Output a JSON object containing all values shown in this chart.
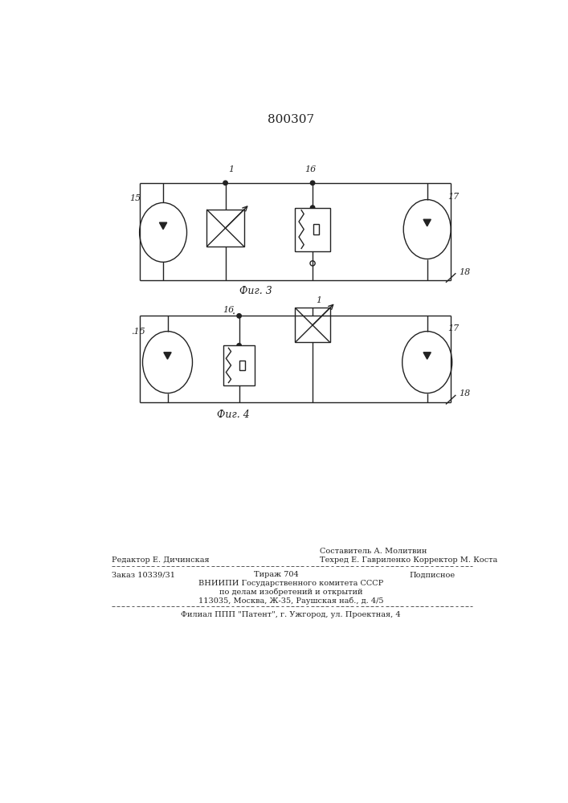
{
  "title": "800307",
  "fig_width": 7.07,
  "fig_height": 10.0,
  "bg_color": "#ffffff",
  "line_color": "#222222",
  "fig3_label": "Фиг. 3",
  "fig4_label": "Фиг. 4",
  "footer": {
    "sestavitel": "Составитель А. Молитвин",
    "redaktor": "Редактор Е. Дичинская",
    "tehred": "Техред Е. Гавриленко Корректор М. Коста",
    "zakaz": "Заказ 10339/31",
    "tirazh": "Тираж 704",
    "podpisnoe": "Подписное",
    "vniip1": "ВНИИПИ Государственного комитета СССР",
    "vniip2": "по делам изобретений и открытий",
    "address": "113035, Москва, Ж-35, Раушская наб., д. 4/5",
    "filial": "Филиал ППП \"Патент\", г. Ужгород, ул. Проектная, 4"
  }
}
